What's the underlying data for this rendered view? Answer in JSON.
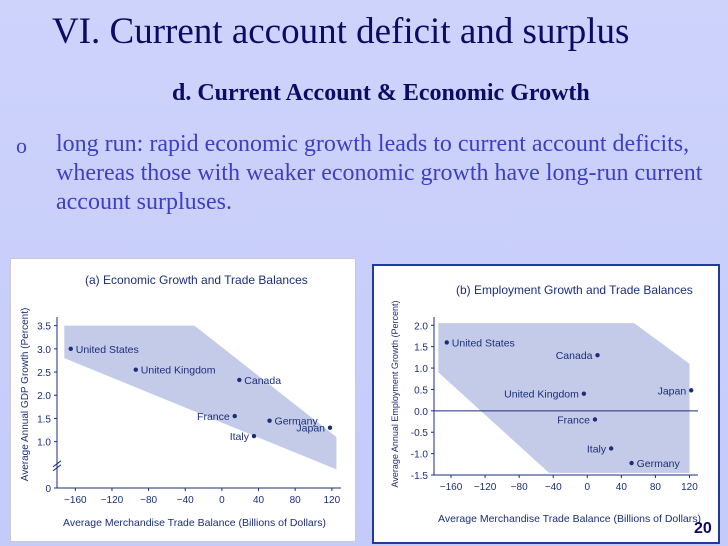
{
  "slide": {
    "title": "VI. Current account deficit and surplus",
    "subtitle": "d. Current Account & Economic Growth",
    "bullet_marker": "o",
    "bullet_text": "long run:  rapid economic growth leads to current account deficits, whereas those with weaker economic growth have long-run current account surpluses.",
    "page_number": "20"
  },
  "colors": {
    "title": "#0b0b66",
    "bullet": "#3e3fc4",
    "band": "#c3cbe9",
    "chart_text": "#1b2e7a"
  },
  "chart_data": [
    {
      "type": "scatter",
      "title": "(a) Economic Growth and Trade Balances",
      "xlabel": "Average Merchandise Trade Balance (Billions of Dollars)",
      "ylabel": "Average Annual GDP Growth (Percent)",
      "xlim": [
        -180,
        130
      ],
      "ylim": [
        0,
        3.6
      ],
      "axis_break": true,
      "grid": false,
      "x_ticks": [
        -160,
        -120,
        -80,
        -40,
        0,
        40,
        80,
        120
      ],
      "y_ticks": [
        0,
        1.0,
        1.5,
        2.0,
        2.5,
        3.0,
        3.5
      ],
      "y_tick_labels": [
        "0",
        "1.0",
        "1.5",
        "2.0",
        "2.5",
        "3.0",
        "3.5"
      ],
      "band": [
        [
          -172,
          3.5
        ],
        [
          -30,
          3.5
        ],
        [
          125,
          1.1
        ],
        [
          125,
          0.4
        ],
        [
          -172,
          2.8
        ]
      ],
      "points": [
        {
          "label": "United States",
          "x": -165,
          "y": 3.0,
          "label_pos": "right"
        },
        {
          "label": "United Kingdom",
          "x": -94,
          "y": 2.55,
          "label_pos": "right"
        },
        {
          "label": "Canada",
          "x": 19,
          "y": 2.33,
          "label_pos": "right"
        },
        {
          "label": "France",
          "x": 14,
          "y": 1.55,
          "label_pos": "left"
        },
        {
          "label": "Germany",
          "x": 52,
          "y": 1.45,
          "label_pos": "right"
        },
        {
          "label": "Japan",
          "x": 118,
          "y": 1.3,
          "label_pos": "left"
        },
        {
          "label": "Italy",
          "x": 35,
          "y": 1.12,
          "label_pos": "left"
        }
      ]
    },
    {
      "type": "scatter",
      "title": "(b) Employment Growth and Trade Balances",
      "xlabel": "Average Merchandise Trade Balance (Billions of Dollars)",
      "ylabel": "Average Annual Employment Growth (Percent)",
      "xlim": [
        -180,
        130
      ],
      "ylim": [
        -1.5,
        2.1
      ],
      "grid": false,
      "zero_line": true,
      "x_ticks": [
        -160,
        -120,
        -80,
        -40,
        0,
        40,
        80,
        120
      ],
      "y_ticks": [
        -1.5,
        -1.0,
        -0.5,
        0.0,
        0.5,
        1.0,
        1.5,
        2.0
      ],
      "y_tick_labels": [
        "-1.5",
        "-1.0",
        "-0.5",
        "0.0",
        "0.5",
        "1.0",
        "1.5",
        "2.0"
      ],
      "band": [
        [
          -175,
          2.05
        ],
        [
          -175,
          0.9
        ],
        [
          -45,
          -1.45
        ],
        [
          120,
          -1.45
        ],
        [
          120,
          1.1
        ],
        [
          55,
          2.05
        ]
      ],
      "points": [
        {
          "label": "United States",
          "x": -165,
          "y": 1.6,
          "label_pos": "right"
        },
        {
          "label": "Canada",
          "x": 12,
          "y": 1.3,
          "label_pos": "left"
        },
        {
          "label": "United Kingdom",
          "x": -4,
          "y": 0.4,
          "label_pos": "left"
        },
        {
          "label": "Japan",
          "x": 122,
          "y": 0.48,
          "label_pos": "left"
        },
        {
          "label": "France",
          "x": 9,
          "y": -0.2,
          "label_pos": "left"
        },
        {
          "label": "Italy",
          "x": 28,
          "y": -0.88,
          "label_pos": "left"
        },
        {
          "label": "Germany",
          "x": 52,
          "y": -1.22,
          "label_pos": "right"
        }
      ]
    }
  ]
}
